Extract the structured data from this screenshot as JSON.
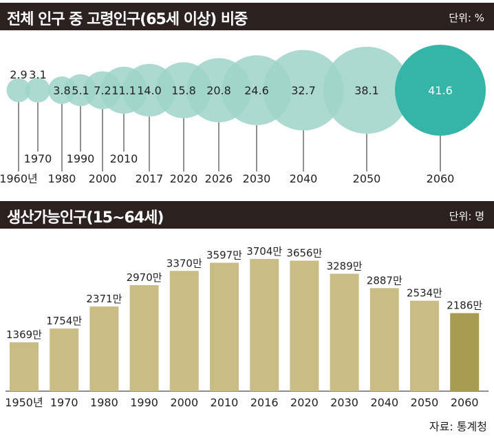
{
  "panel1": {
    "title": "전체 인구 중 고령인구(65세 이상) 비중",
    "unit": "단위: %"
  },
  "panel2": {
    "title": "생산가능인구(15~64세)",
    "unit": "단위: 명"
  },
  "source": "자료: 통계청",
  "colors": {
    "header_bg": "#2b2220",
    "bubble": "#9dd4c9",
    "bubble_highlight": "#35b5a7",
    "bar": "#c9bd85",
    "bar_highlight": "#a89b52"
  },
  "chart_data": [
    {
      "type": "bubble",
      "title": "전체 인구 중 고령인구(65세 이상) 비중",
      "unit": "%",
      "categories": [
        "1960년",
        "1970",
        "1980",
        "1990",
        "2000",
        "2010",
        "2017",
        "2020",
        "2026",
        "2030",
        "2040",
        "2050",
        "2060"
      ],
      "values": [
        2.9,
        3.1,
        3.8,
        5.1,
        7.2,
        11.1,
        14.0,
        15.8,
        20.8,
        24.6,
        32.7,
        38.1,
        41.6
      ],
      "labels": [
        "2.9",
        "3.1",
        "3.8",
        "5.1",
        "7.2",
        "11.1",
        "14.0",
        "15.8",
        "20.8",
        "24.6",
        "32.7",
        "38.1",
        "41.6"
      ],
      "highlight": "2060"
    },
    {
      "type": "bar",
      "title": "생산가능인구(15~64세)",
      "unit": "명",
      "categories": [
        "1950년",
        "1970",
        "1980",
        "1990",
        "2000",
        "2010",
        "2016",
        "2020",
        "2030",
        "2040",
        "2050",
        "2060"
      ],
      "values": [
        1369,
        1754,
        2371,
        2970,
        3370,
        3597,
        3704,
        3656,
        3289,
        2887,
        2534,
        2186
      ],
      "labels": [
        "1369만",
        "1754만",
        "2371만",
        "2970만",
        "3370만",
        "3597만",
        "3704만",
        "3656만",
        "3289만",
        "2887만",
        "2534만",
        "2186만"
      ],
      "highlight": "2060"
    }
  ]
}
